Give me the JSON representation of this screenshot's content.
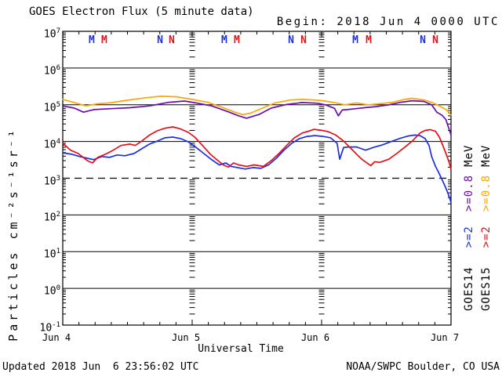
{
  "header": {
    "title": "GOES Electron Flux (5 minute data)",
    "begin_label": "Begin: 2018 Jun 4 0000 UTC"
  },
  "footer": {
    "updated": "Updated 2018 Jun  6 23:56:02 UTC",
    "source": "NOAA/SWPC Boulder, CO USA"
  },
  "axes": {
    "y_label": "Particles cm⁻²s⁻¹sr⁻¹",
    "x_label": "Universal Time",
    "y_tick_exponents": [
      7,
      6,
      5,
      4,
      3,
      2,
      1,
      0,
      -1
    ],
    "x_tick_labels": [
      "Jun 4",
      "Jun 5",
      "Jun 6",
      "Jun 7"
    ]
  },
  "legend": {
    "columns": [
      {
        "satellite": "GOES14",
        "threshold_2": ">=2",
        "threshold_08": ">=0.8",
        "unit": "MeV",
        "color_2": "#1c2de8",
        "color_08": "#6a0dad",
        "color_text": "#000000"
      },
      {
        "satellite": "GOES15",
        "threshold_2": ">=2",
        "threshold_08": ">=0.8",
        "unit": "MeV",
        "color_2": "#e41019",
        "color_08": "#ffa500",
        "color_text": "#000000"
      }
    ]
  },
  "chart_data": {
    "type": "line",
    "title": "GOES Electron Flux (5 minute data)",
    "xlabel": "Universal Time",
    "ylabel": "Particles cm^-2 s^-1 sr^-1",
    "x_unit": "days since 2018 Jun 4 0000 UTC",
    "x_range": [
      0,
      3
    ],
    "y_scale": "log",
    "y_range": [
      0.1,
      10000000
    ],
    "grid": true,
    "legend_position": "right-rotated",
    "gridlines": {
      "solid_decades": [
        6,
        5,
        4,
        2,
        1,
        0
      ],
      "dashed_decades": [
        3
      ],
      "vertical_day_boundaries": [
        1,
        2
      ]
    },
    "day_markers": [
      {
        "label": "M",
        "color": "#1c2de8",
        "day": 0.224
      },
      {
        "label": "M",
        "color": "#e41019",
        "day": 0.321
      },
      {
        "label": "N",
        "color": "#1c2de8",
        "day": 0.752
      },
      {
        "label": "N",
        "color": "#e41019",
        "day": 0.842
      },
      {
        "label": "M",
        "color": "#1c2de8",
        "day": 1.248
      },
      {
        "label": "M",
        "color": "#e41019",
        "day": 1.345
      },
      {
        "label": "N",
        "color": "#1c2de8",
        "day": 1.764
      },
      {
        "label": "N",
        "color": "#e41019",
        "day": 1.861
      },
      {
        "label": "M",
        "color": "#1c2de8",
        "day": 2.261
      },
      {
        "label": "M",
        "color": "#e41019",
        "day": 2.364
      },
      {
        "label": "N",
        "color": "#1c2de8",
        "day": 2.782
      },
      {
        "label": "N",
        "color": "#e41019",
        "day": 2.879
      }
    ],
    "series": [
      {
        "name": "GOES14 >=0.8 MeV",
        "color": "#6a0dad",
        "points": [
          [
            0.0,
            93000.0
          ],
          [
            0.09,
            81000.0
          ],
          [
            0.16,
            63000.0
          ],
          [
            0.24,
            74000.0
          ],
          [
            0.36,
            78000.0
          ],
          [
            0.52,
            83000.0
          ],
          [
            0.67,
            93000.0
          ],
          [
            0.82,
            117000.0
          ],
          [
            0.94,
            126000.0
          ],
          [
            1.03,
            112000.0
          ],
          [
            1.15,
            93000.0
          ],
          [
            1.27,
            66000.0
          ],
          [
            1.36,
            50000.0
          ],
          [
            1.42,
            43000.0
          ],
          [
            1.52,
            55000.0
          ],
          [
            1.61,
            81000.0
          ],
          [
            1.73,
            102000.0
          ],
          [
            1.85,
            115000.0
          ],
          [
            1.97,
            110000.0
          ],
          [
            2.03,
            100000.0
          ],
          [
            2.1,
            80000.0
          ],
          [
            2.13,
            50000.0
          ],
          [
            2.16,
            72000.0
          ],
          [
            2.2,
            74000.0
          ],
          [
            2.26,
            78000.0
          ],
          [
            2.33,
            83000.0
          ],
          [
            2.42,
            89000.0
          ],
          [
            2.52,
            100000.0
          ],
          [
            2.61,
            117000.0
          ],
          [
            2.7,
            129000.0
          ],
          [
            2.79,
            123000.0
          ],
          [
            2.85,
            100000.0
          ],
          [
            2.89,
            63000.0
          ],
          [
            2.93,
            52000.0
          ],
          [
            2.96,
            40000.0
          ],
          [
            3.0,
            15000.0
          ]
        ]
      },
      {
        "name": "GOES15 >=0.8 MeV",
        "color": "#ffa500",
        "points": [
          [
            0.0,
            140000.0
          ],
          [
            0.09,
            115000.0
          ],
          [
            0.18,
            93000.0
          ],
          [
            0.27,
            107000.0
          ],
          [
            0.36,
            112000.0
          ],
          [
            0.48,
            130000.0
          ],
          [
            0.64,
            155000.0
          ],
          [
            0.76,
            170000.0
          ],
          [
            0.88,
            165000.0
          ],
          [
            1.0,
            140000.0
          ],
          [
            1.12,
            117000.0
          ],
          [
            1.24,
            83000.0
          ],
          [
            1.33,
            63000.0
          ],
          [
            1.39,
            54000.0
          ],
          [
            1.45,
            59000.0
          ],
          [
            1.55,
            83000.0
          ],
          [
            1.64,
            112000.0
          ],
          [
            1.76,
            135000.0
          ],
          [
            1.85,
            140000.0
          ],
          [
            1.94,
            135000.0
          ],
          [
            2.0,
            130000.0
          ],
          [
            2.09,
            117000.0
          ],
          [
            2.18,
            100000.0
          ],
          [
            2.27,
            112000.0
          ],
          [
            2.36,
            100000.0
          ],
          [
            2.45,
            107000.0
          ],
          [
            2.55,
            117000.0
          ],
          [
            2.64,
            140000.0
          ],
          [
            2.7,
            150000.0
          ],
          [
            2.79,
            135000.0
          ],
          [
            2.85,
            117000.0
          ],
          [
            2.91,
            93000.0
          ],
          [
            2.97,
            71000.0
          ],
          [
            3.0,
            52000.0
          ]
        ]
      },
      {
        "name": "GOES14 >=2 MeV",
        "color": "#1c2de8",
        "points": [
          [
            0.0,
            4900.0
          ],
          [
            0.07,
            4500.0
          ],
          [
            0.13,
            3900.0
          ],
          [
            0.19,
            3500.0
          ],
          [
            0.24,
            3200.0
          ],
          [
            0.3,
            3900.0
          ],
          [
            0.36,
            3700.0
          ],
          [
            0.42,
            4300.0
          ],
          [
            0.48,
            4100.0
          ],
          [
            0.55,
            4700.0
          ],
          [
            0.61,
            6300.0
          ],
          [
            0.67,
            8500.0
          ],
          [
            0.73,
            10200.0
          ],
          [
            0.79,
            12600.0
          ],
          [
            0.85,
            13200.0
          ],
          [
            0.91,
            12000.0
          ],
          [
            0.97,
            9800.0
          ],
          [
            1.03,
            6900.0
          ],
          [
            1.09,
            4700.0
          ],
          [
            1.15,
            3200.0
          ],
          [
            1.21,
            2300.0
          ],
          [
            1.26,
            2600.0
          ],
          [
            1.3,
            2100.0
          ],
          [
            1.35,
            1950.0
          ],
          [
            1.41,
            1780.0
          ],
          [
            1.47,
            1950.0
          ],
          [
            1.53,
            1860.0
          ],
          [
            1.59,
            2300.0
          ],
          [
            1.65,
            3500.0
          ],
          [
            1.71,
            5800.0
          ],
          [
            1.77,
            9000.0
          ],
          [
            1.83,
            12000.0
          ],
          [
            1.89,
            13800.0
          ],
          [
            1.95,
            14500.0
          ],
          [
            2.01,
            13800.0
          ],
          [
            2.07,
            12600.0
          ],
          [
            2.12,
            8900.0
          ],
          [
            2.14,
            3300.0
          ],
          [
            2.17,
            6900.0
          ],
          [
            2.21,
            7100.0
          ],
          [
            2.27,
            7100.0
          ],
          [
            2.31,
            6300.0
          ],
          [
            2.34,
            5800.0
          ],
          [
            2.4,
            6900.0
          ],
          [
            2.47,
            8100.0
          ],
          [
            2.54,
            10000.0
          ],
          [
            2.61,
            12300.0
          ],
          [
            2.67,
            14100.0
          ],
          [
            2.72,
            15000.0
          ],
          [
            2.76,
            14500.0
          ],
          [
            2.8,
            12000.0
          ],
          [
            2.83,
            7800.0
          ],
          [
            2.85,
            3900.0
          ],
          [
            2.88,
            2100.0
          ],
          [
            2.9,
            1550.0
          ],
          [
            2.92,
            1100.0
          ],
          [
            2.94,
            780.0
          ],
          [
            2.96,
            540.0
          ],
          [
            2.98,
            360.0
          ],
          [
            3.0,
            220.0
          ]
        ]
      },
      {
        "name": "GOES15 >=2 MeV",
        "color": "#e41019",
        "points": [
          [
            0.0,
            9000.0
          ],
          [
            0.06,
            5800.0
          ],
          [
            0.12,
            4700.0
          ],
          [
            0.19,
            3000.0
          ],
          [
            0.23,
            2600.0
          ],
          [
            0.27,
            3700.0
          ],
          [
            0.33,
            4500.0
          ],
          [
            0.39,
            5800.0
          ],
          [
            0.45,
            7800.0
          ],
          [
            0.52,
            8500.0
          ],
          [
            0.56,
            7800.0
          ],
          [
            0.61,
            10200.0
          ],
          [
            0.67,
            15000.0
          ],
          [
            0.73,
            19500.0
          ],
          [
            0.79,
            23000.0
          ],
          [
            0.85,
            25000.0
          ],
          [
            0.91,
            22000.0
          ],
          [
            0.97,
            17800.0
          ],
          [
            1.02,
            13200.0
          ],
          [
            1.08,
            7800.0
          ],
          [
            1.14,
            4500.0
          ],
          [
            1.2,
            3000.0
          ],
          [
            1.24,
            2300.0
          ],
          [
            1.28,
            2000.0
          ],
          [
            1.32,
            2600.0
          ],
          [
            1.36,
            2300.0
          ],
          [
            1.42,
            2100.0
          ],
          [
            1.48,
            2300.0
          ],
          [
            1.55,
            2100.0
          ],
          [
            1.61,
            3000.0
          ],
          [
            1.67,
            4700.0
          ],
          [
            1.73,
            7800.0
          ],
          [
            1.79,
            12600.0
          ],
          [
            1.85,
            17000.0
          ],
          [
            1.91,
            19500.0
          ],
          [
            1.94,
            21400.0
          ],
          [
            1.99,
            20400.0
          ],
          [
            2.05,
            18600.0
          ],
          [
            2.11,
            15000.0
          ],
          [
            2.17,
            10200.0
          ],
          [
            2.23,
            6300.0
          ],
          [
            2.27,
            4500.0
          ],
          [
            2.31,
            3300.0
          ],
          [
            2.35,
            2600.0
          ],
          [
            2.38,
            2200.0
          ],
          [
            2.41,
            2800.0
          ],
          [
            2.45,
            2700.0
          ],
          [
            2.52,
            3300.0
          ],
          [
            2.58,
            4700.0
          ],
          [
            2.64,
            6900.0
          ],
          [
            2.7,
            10200.0
          ],
          [
            2.76,
            17000.0
          ],
          [
            2.8,
            20000.0
          ],
          [
            2.84,
            21000.0
          ],
          [
            2.88,
            19000.0
          ],
          [
            2.91,
            13200.0
          ],
          [
            2.94,
            7300.0
          ],
          [
            2.97,
            3900.0
          ],
          [
            2.99,
            2400.0
          ],
          [
            3.0,
            1700.0
          ]
        ]
      }
    ]
  }
}
